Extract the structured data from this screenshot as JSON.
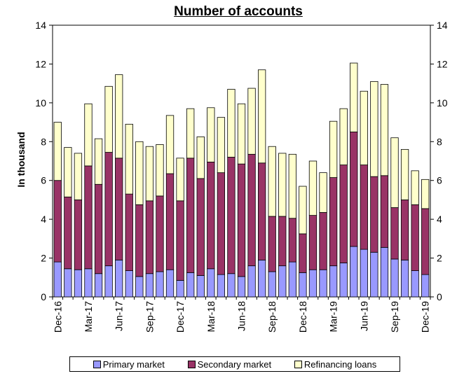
{
  "chart_data": {
    "type": "bar",
    "stacked": true,
    "title": "Number of accounts",
    "ylabel": "In thousand",
    "ylim": [
      0,
      14
    ],
    "yticks": [
      "0",
      "2",
      "4",
      "6",
      "8",
      "10",
      "12",
      "14"
    ],
    "secondary_yticks": [
      "0",
      "2",
      "4",
      "6",
      "8",
      "10",
      "12",
      "14"
    ],
    "categories": [
      "Dec-16",
      "Jan-17",
      "Feb-17",
      "Mar-17",
      "Apr-17",
      "May-17",
      "Jun-17",
      "Jul-17",
      "Aug-17",
      "Sep-17",
      "Oct-17",
      "Nov-17",
      "Dec-17",
      "Jan-18",
      "Feb-18",
      "Mar-18",
      "Apr-18",
      "May-18",
      "Jun-18",
      "Jul-18",
      "Aug-18",
      "Sep-18",
      "Oct-18",
      "Nov-18",
      "Dec-18",
      "Jan-19",
      "Feb-19",
      "Mar-19",
      "Apr-19",
      "May-19",
      "Jun-19",
      "Jul-19",
      "Aug-19",
      "Sep-19",
      "Oct-19",
      "Nov-19",
      "Dec-19"
    ],
    "xtick_labels": [
      "Dec-16",
      "Mar-17",
      "Jun-17",
      "Sep-17",
      "Dec-17",
      "Mar-18",
      "Jun-18",
      "Sep-18",
      "Dec-18",
      "Mar-19",
      "Jun-19",
      "Sep-19",
      "Dec-19"
    ],
    "series": [
      {
        "name": "Primary market",
        "color": "#9999ff",
        "values": [
          1.8,
          1.45,
          1.4,
          1.45,
          1.2,
          1.6,
          1.9,
          1.35,
          1.05,
          1.2,
          1.3,
          1.4,
          0.85,
          1.25,
          1.1,
          1.45,
          1.15,
          1.2,
          1.05,
          1.6,
          1.9,
          1.3,
          1.6,
          1.8,
          1.25,
          1.4,
          1.4,
          1.6,
          1.75,
          2.6,
          2.45,
          2.3,
          2.55,
          1.95,
          1.9,
          1.35,
          1.15
        ]
      },
      {
        "name": "Secondary market",
        "color": "#993366",
        "values": [
          4.2,
          3.7,
          3.6,
          5.3,
          4.6,
          5.85,
          5.25,
          3.95,
          3.7,
          3.75,
          3.9,
          4.95,
          4.1,
          5.9,
          5.0,
          5.5,
          5.25,
          6.0,
          5.8,
          5.75,
          5.0,
          2.85,
          2.55,
          2.25,
          2.0,
          2.8,
          2.95,
          4.55,
          5.05,
          5.9,
          4.35,
          3.9,
          3.7,
          2.65,
          3.1,
          3.4,
          3.4
        ]
      },
      {
        "name": "Refinancing loans",
        "color": "#ffffcc",
        "values": [
          3.0,
          2.55,
          2.4,
          3.2,
          2.35,
          3.4,
          4.3,
          3.6,
          3.25,
          2.8,
          2.65,
          3.0,
          2.2,
          2.55,
          2.15,
          2.8,
          2.85,
          3.5,
          3.1,
          3.4,
          4.8,
          3.6,
          3.25,
          3.3,
          2.45,
          2.8,
          2.05,
          2.9,
          2.9,
          3.55,
          3.8,
          4.9,
          4.7,
          3.6,
          2.6,
          1.75,
          1.5
        ]
      }
    ],
    "grid": false,
    "legend_position": "bottom"
  }
}
